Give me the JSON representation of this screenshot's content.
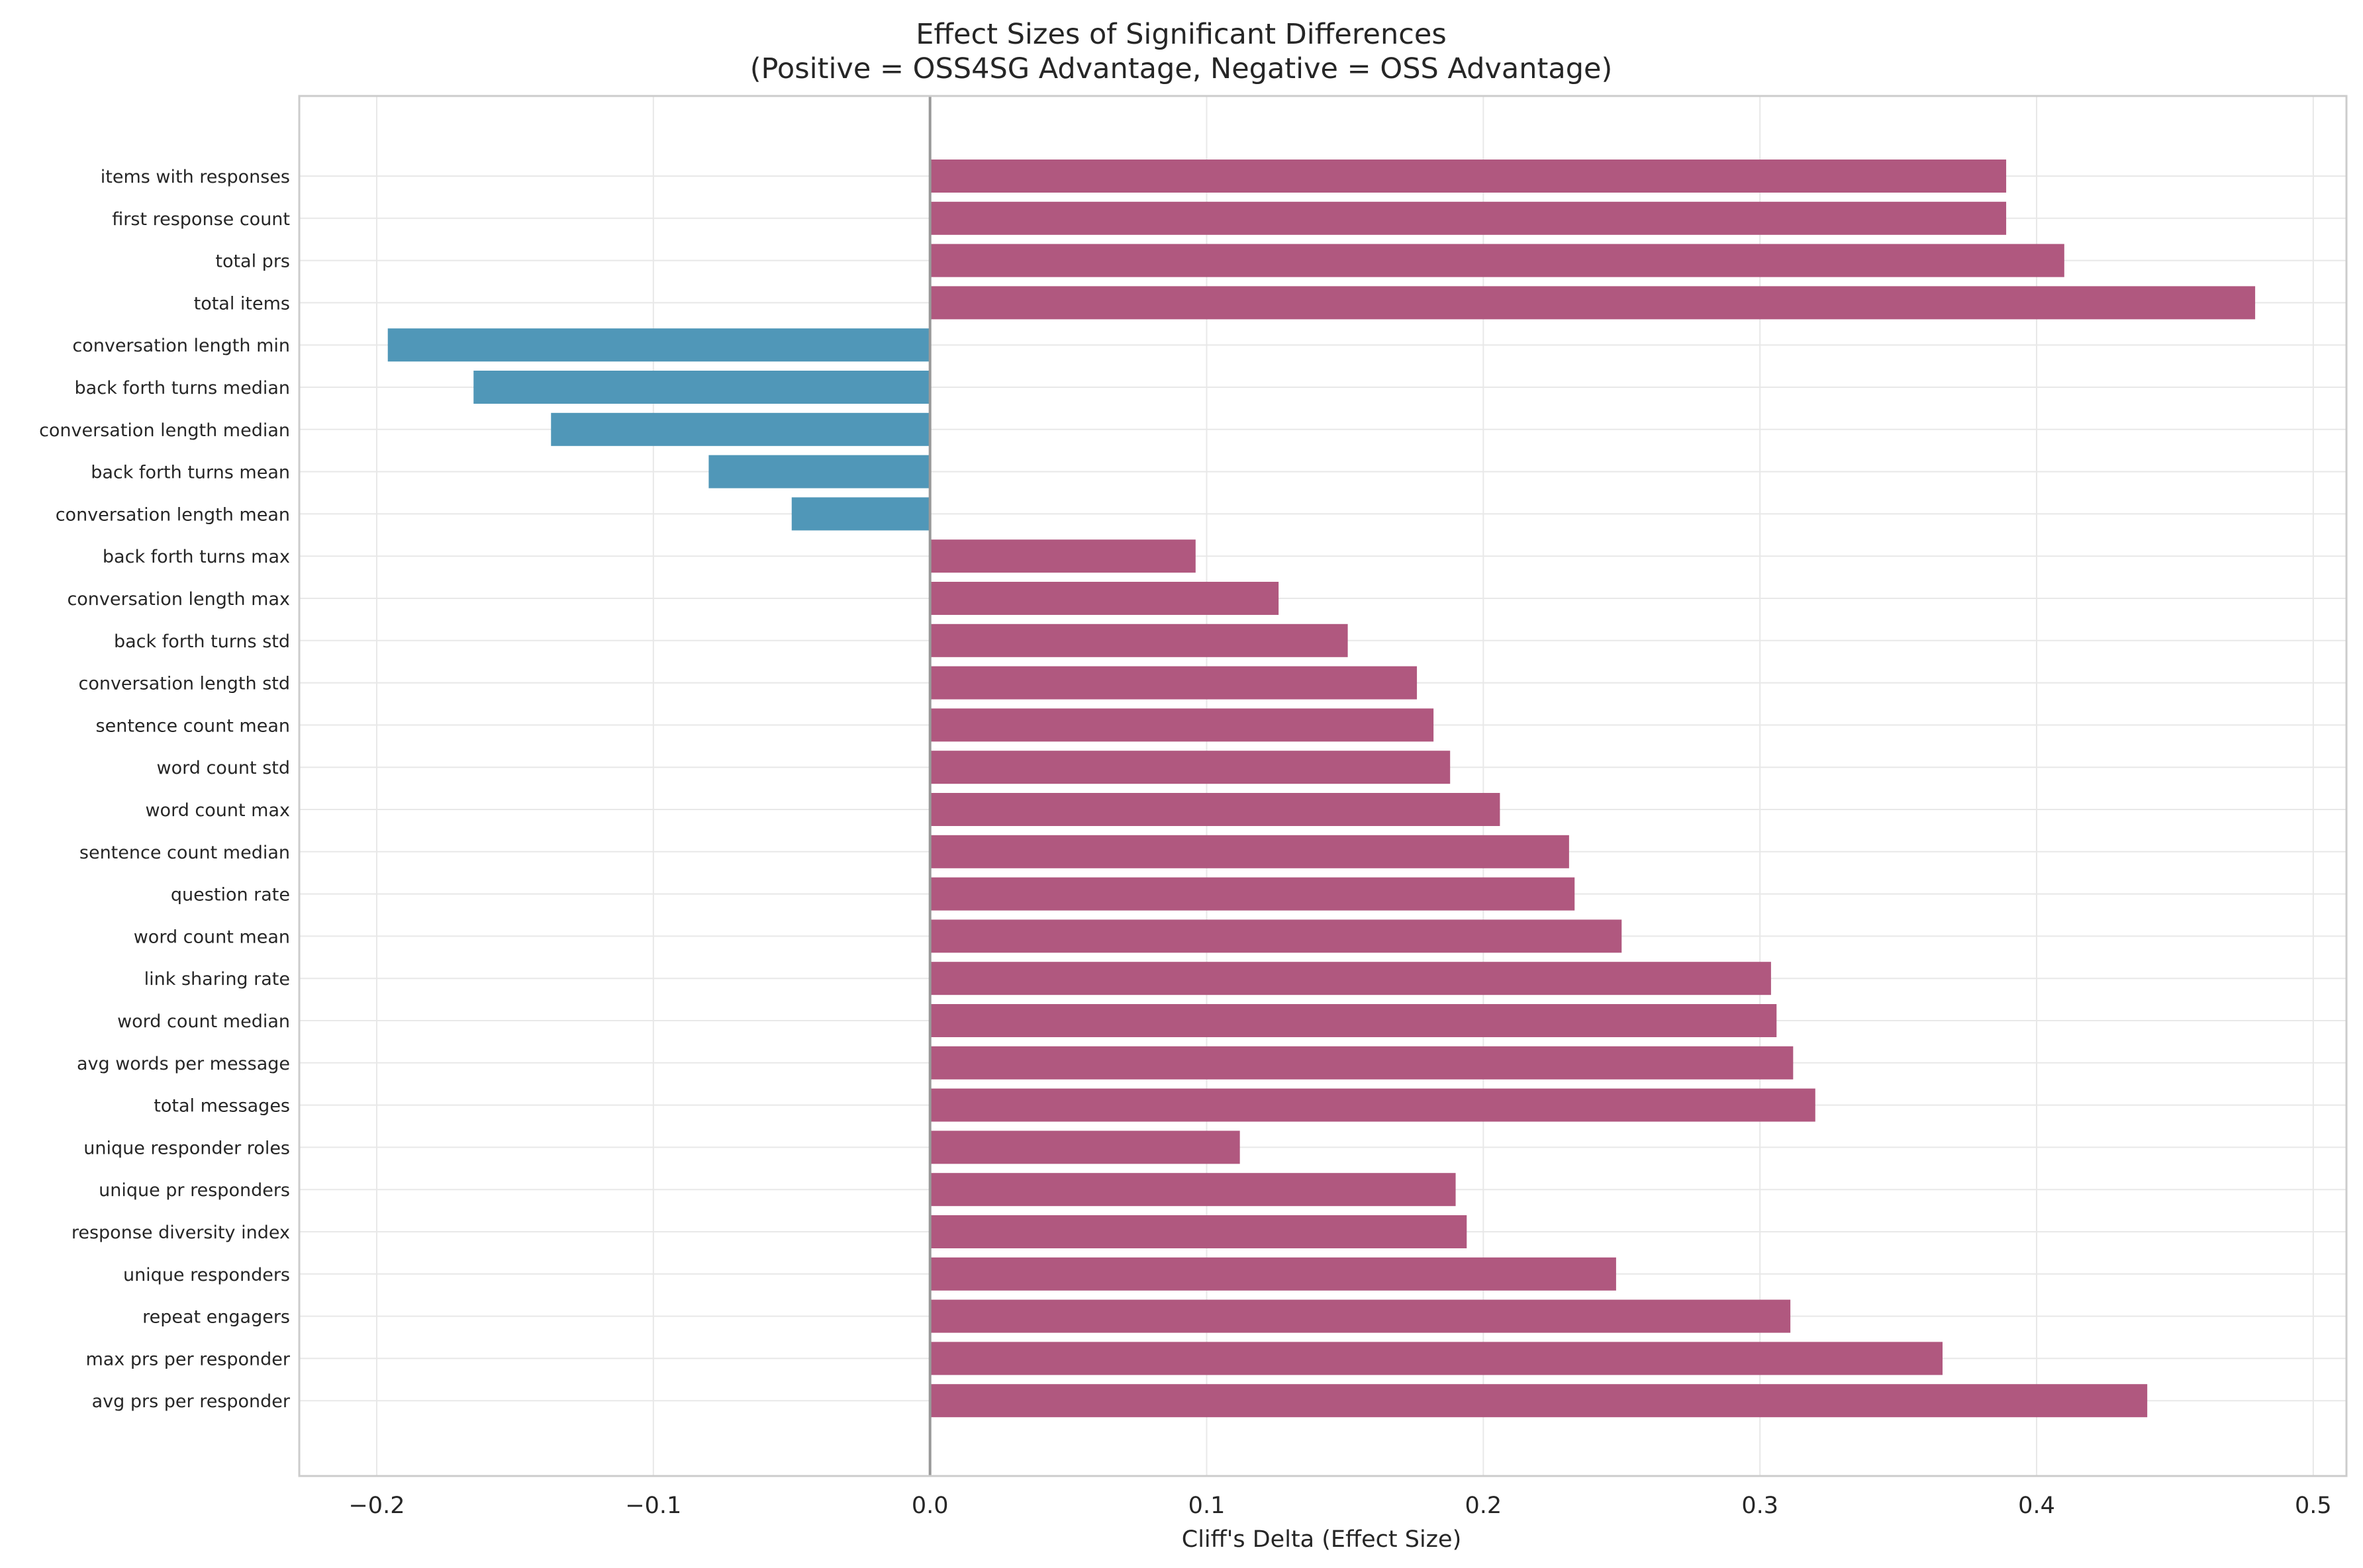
{
  "chart_data": {
    "type": "bar",
    "orientation": "horizontal",
    "title": "Effect Sizes of Significant Differences",
    "subtitle": "(Positive = OSS4SG Advantage, Negative = OSS Advantage)",
    "xlabel": "Cliff's Delta (Effect Size)",
    "ylabel": "",
    "xlim": [
      -0.228,
      0.512
    ],
    "xticks": [
      -0.2,
      -0.1,
      0.0,
      0.1,
      0.2,
      0.3,
      0.4,
      0.5
    ],
    "xtick_labels": [
      "−0.2",
      "−0.1",
      "0.0",
      "0.1",
      "0.2",
      "0.3",
      "0.4",
      "0.5"
    ],
    "grid": true,
    "colors": {
      "positive": "#b0587f",
      "negative": "#5097b8"
    },
    "categories": [
      "items with responses",
      "first response count",
      "total prs",
      "total items",
      "conversation length min",
      "back forth turns median",
      "conversation length median",
      "back forth turns mean",
      "conversation length mean",
      "back forth turns max",
      "conversation length max",
      "back forth turns std",
      "conversation length std",
      "sentence count mean",
      "word count std",
      "word count max",
      "sentence count median",
      "question rate",
      "word count mean",
      "link sharing rate",
      "word count median",
      "avg words per message",
      "total messages",
      "unique responder roles",
      "unique pr responders",
      "response diversity index",
      "unique responders",
      "repeat engagers",
      "max prs per responder",
      "avg prs per responder"
    ],
    "values": [
      0.389,
      0.389,
      0.41,
      0.479,
      -0.196,
      -0.165,
      -0.137,
      -0.08,
      -0.05,
      0.096,
      0.126,
      0.151,
      0.176,
      0.182,
      0.188,
      0.206,
      0.231,
      0.233,
      0.25,
      0.304,
      0.306,
      0.312,
      0.32,
      0.112,
      0.19,
      0.194,
      0.248,
      0.311,
      0.366,
      0.44
    ]
  }
}
